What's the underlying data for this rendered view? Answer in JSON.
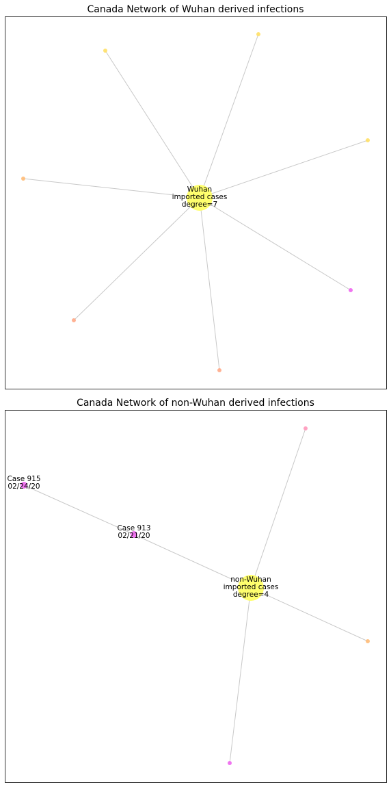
{
  "colors": {
    "hub": "#ffff66",
    "yellow": "#ffe066",
    "orange": "#ffbb77",
    "salmon": "#ffaa88",
    "magenta": "#ee66ee",
    "pink": "#ff99bb",
    "edge": "#c8c8c8"
  },
  "panels": [
    {
      "title": "Canada Network of Wuhan derived infections",
      "hub": {
        "lines": [
          "Wuhan",
          "imported cases",
          "degree=7"
        ],
        "color": "hub"
      },
      "nodes": [
        {
          "id": "w1",
          "color": "yellow",
          "label": []
        },
        {
          "id": "w2",
          "color": "yellow",
          "label": []
        },
        {
          "id": "w3",
          "color": "yellow",
          "label": []
        },
        {
          "id": "w4",
          "color": "orange",
          "label": []
        },
        {
          "id": "w5",
          "color": "magenta",
          "label": []
        },
        {
          "id": "w6",
          "color": "salmon",
          "label": []
        },
        {
          "id": "w7",
          "color": "salmon",
          "label": []
        }
      ],
      "edges": [
        [
          "hub",
          "w1"
        ],
        [
          "hub",
          "w2"
        ],
        [
          "hub",
          "w3"
        ],
        [
          "hub",
          "w4"
        ],
        [
          "hub",
          "w5"
        ],
        [
          "hub",
          "w6"
        ],
        [
          "hub",
          "w7"
        ]
      ]
    },
    {
      "title": "Canada Network of non-Wuhan derived infections",
      "hub": {
        "lines": [
          "non-Wuhan",
          "imported cases",
          "degree=4"
        ],
        "color": "hub"
      },
      "nodes": [
        {
          "id": "n1",
          "color": "pink",
          "label": []
        },
        {
          "id": "n2",
          "color": "magenta",
          "label": [
            "Case 915",
            "02/24/20"
          ]
        },
        {
          "id": "n3",
          "color": "magenta",
          "label": [
            "Case 913",
            "02/21/20"
          ]
        },
        {
          "id": "n4",
          "color": "orange",
          "label": []
        },
        {
          "id": "n5",
          "color": "magenta",
          "label": []
        }
      ],
      "edges": [
        [
          "hub",
          "n1"
        ],
        [
          "n2",
          "n3"
        ],
        [
          "n3",
          "hub"
        ],
        [
          "hub",
          "n4"
        ],
        [
          "hub",
          "n5"
        ]
      ]
    }
  ]
}
